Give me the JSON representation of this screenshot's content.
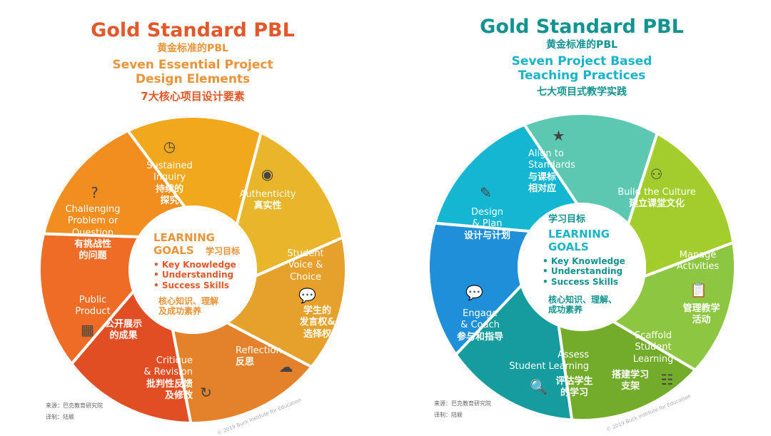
{
  "left": {
    "title": "Gold Standard PBL",
    "title_zh": "黄金标准的PBL",
    "subtitle": "Seven Essential Project\nDesign Elements",
    "subtitle_zh": "7大核心项目设计要素",
    "title_color": "#E2582A",
    "sub_color": "#E8943A",
    "center": {
      "heading": "LEARNING\nGOALS",
      "heading_zh": "学习目标",
      "items": "• Key Knowledge\n• Understanding\n• Success Skills",
      "items_zh": "核心知识、理解\n及成功素养"
    },
    "segments": [
      {
        "en": "Sustained\nInquiry",
        "zh": "持续的\n探究",
        "color": "#F2A81D",
        "icon": "clock-icon"
      },
      {
        "en": "Authenticity",
        "zh": "真实性",
        "color": "#E9B52A",
        "icon": "fingerprint-icon"
      },
      {
        "en": "Student\nVoice &\nChoice",
        "zh": "学生的\n发言权&\n选择权",
        "color": "#E5A12B",
        "icon": "speech-bubble-icon"
      },
      {
        "en": "Reflection",
        "zh": "反思",
        "color": "#E3822A",
        "icon": "head-cloud-icon"
      },
      {
        "en": "Critique\n& Revision",
        "zh": "批判性反馈\n及修改",
        "color": "#E24E24",
        "icon": "refresh-icon"
      },
      {
        "en": "Public\nProduct",
        "zh": "公开展示\n的成果",
        "color": "#EE6C25",
        "icon": "presentation-icon"
      },
      {
        "en": "Challenging\nProblem or\nQuestion",
        "zh": "有挑战性\n的问题",
        "color": "#F28E1F",
        "icon": "question-icon"
      }
    ],
    "source": "来源：巴克教育研究院",
    "translator": "译制：陆颖",
    "copyright": "© 2019 Buck Institute for Education"
  },
  "right": {
    "title": "Gold Standard PBL",
    "title_zh": "黄金标准的PBL",
    "subtitle": "Seven Project Based\nTeaching Practices",
    "subtitle_zh": "七大项目式教学实践",
    "title_color": "#12938F",
    "sub_color": "#1BB3C8",
    "center": {
      "heading_zh": "学习目标",
      "heading": "LEARNING\nGOALS",
      "items": "• Key Knowledge\n• Understanding\n• Success Skills",
      "items_zh": "核心知识、理解、\n成功素养"
    },
    "segments": [
      {
        "en": "Align to\nStandards",
        "zh": "与课标\n相对应",
        "color": "#5CC8B2",
        "icon": "star-icon"
      },
      {
        "en": "Build the Culture",
        "zh": "建立课堂文化",
        "color": "#A2CD2C",
        "icon": "people-icon"
      },
      {
        "en": "Manage\nActivities",
        "zh": "管理教学\n活动",
        "color": "#8DC640",
        "icon": "clipboard-icon"
      },
      {
        "en": "Scaffold\nStudent\nLearning",
        "zh": "搭建学习\n支架",
        "color": "#73AB2A",
        "icon": "ladder-icon"
      },
      {
        "en": "Assess\nStudent Learning",
        "zh": "评估学生\n的学习",
        "color": "#169C9E",
        "icon": "magnifier-icon"
      },
      {
        "en": "Engage\n& Coach",
        "zh": "参与和指导",
        "color": "#1E8FD8",
        "icon": "chat-icon"
      },
      {
        "en": "Design\n& Plan",
        "zh": "设计与计划",
        "color": "#14B6D2",
        "icon": "pencil-ruler-icon"
      }
    ],
    "source": "来源：巴克教育研究院",
    "translator": "译制：陆颖",
    "copyright": "© 2019 Buck Institute for Education"
  }
}
